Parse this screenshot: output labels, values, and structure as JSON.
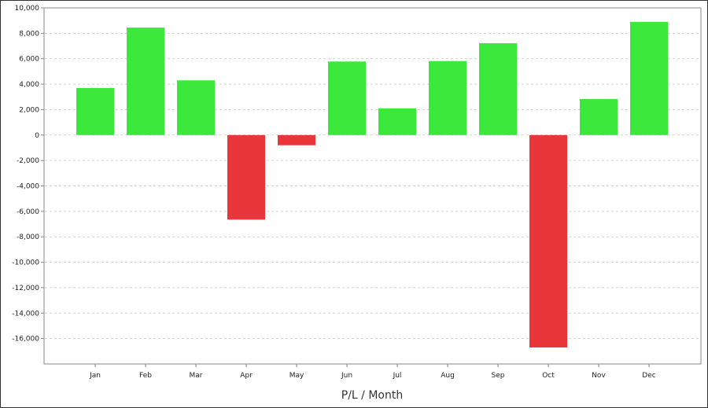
{
  "chart_data": {
    "type": "bar",
    "title": "",
    "xlabel": "P/L / Month",
    "ylabel": "",
    "categories": [
      "Jan",
      "Feb",
      "Mar",
      "Apr",
      "May",
      "Jun",
      "Jul",
      "Aug",
      "Sep",
      "Oct",
      "Nov",
      "Dec"
    ],
    "values": [
      3700,
      8450,
      4300,
      -6650,
      -800,
      5780,
      2100,
      5820,
      7220,
      -16700,
      2830,
      8900
    ],
    "ylim": [
      -18000,
      10000
    ],
    "yticks": [
      10000,
      8000,
      6000,
      4000,
      2000,
      0,
      -2000,
      -4000,
      -6000,
      -8000,
      -10000,
      -12000,
      -14000,
      -16000
    ],
    "ytick_labels": [
      "10,000",
      "8,000",
      "6,000",
      "4,000",
      "2,000",
      "0",
      "-2,000",
      "-4,000",
      "-6,000",
      "-8,000",
      "-10,000",
      "-12,000",
      "-14,000",
      "-16,000"
    ],
    "grid": true,
    "legend": "none",
    "colors": {
      "positive": "#3be83b",
      "negative": "#e8363b",
      "grid": "#d0d0d0",
      "axis": "#888888"
    }
  }
}
